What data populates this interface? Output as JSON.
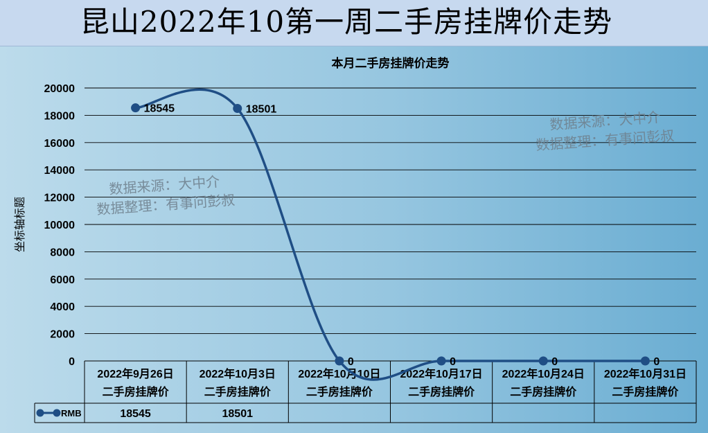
{
  "banner": {
    "title": "昆山2022年10第一周二手房挂牌价走势"
  },
  "watermarks": [
    {
      "line1": "数据来源：大中介",
      "line2": "数据整理：有事问彭叔"
    },
    {
      "line1": "数据来源：大中介",
      "line2": "数据整理：有事问彭叔"
    }
  ],
  "chart_data": {
    "type": "line",
    "title": "本月二手房挂牌价走势",
    "xlabel": "",
    "ylabel": "坐标轴标题",
    "ylim": [
      0,
      20000
    ],
    "yticks": [
      0,
      2000,
      4000,
      6000,
      8000,
      10000,
      12000,
      14000,
      16000,
      18000,
      20000
    ],
    "categories": [
      [
        "2022年9月26日",
        "二手房挂牌价"
      ],
      [
        "2022年10月3日",
        "二手房挂牌价"
      ],
      [
        "2022年10月10日",
        "二手房挂牌价"
      ],
      [
        "2022年10月17日",
        "二手房挂牌价"
      ],
      [
        "2022年10月24日",
        "二手房挂牌价"
      ],
      [
        "2022年10月31日",
        "二手房挂牌价"
      ]
    ],
    "series": [
      {
        "name": "RMB",
        "values": [
          18545,
          18501,
          0,
          0,
          0,
          0
        ],
        "data_labels": [
          "18545",
          "18501",
          "0",
          "0",
          "0",
          "0"
        ],
        "table_values": [
          "18545",
          "18501",
          "",
          "",
          "",
          ""
        ],
        "color": "#1f4e85"
      }
    ],
    "grid": true,
    "smooth": true,
    "data_table": true,
    "legend": "data-table"
  }
}
